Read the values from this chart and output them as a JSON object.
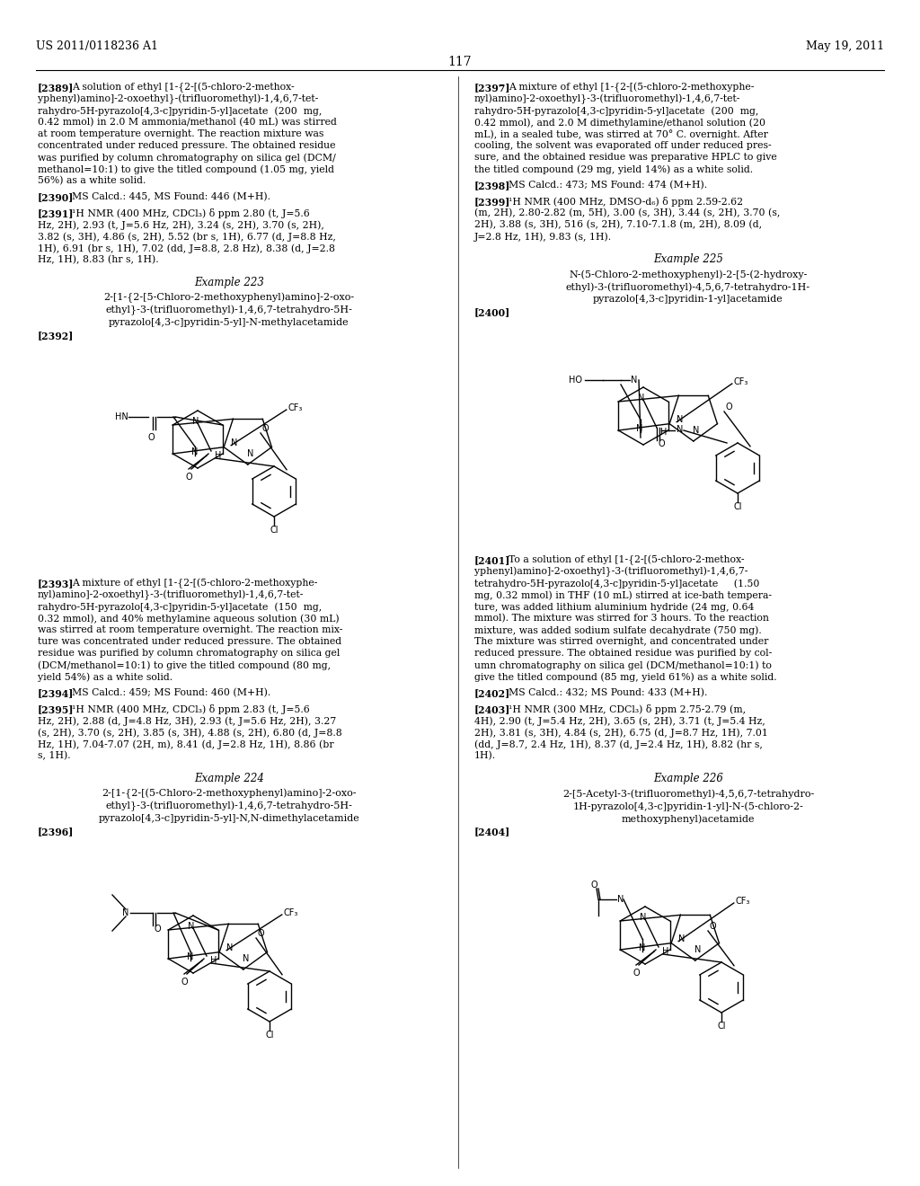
{
  "page_number": "117",
  "header_left": "US 2011/0118236 A1",
  "header_right": "May 19, 2011",
  "background_color": "#ffffff",
  "text_color": "#000000"
}
